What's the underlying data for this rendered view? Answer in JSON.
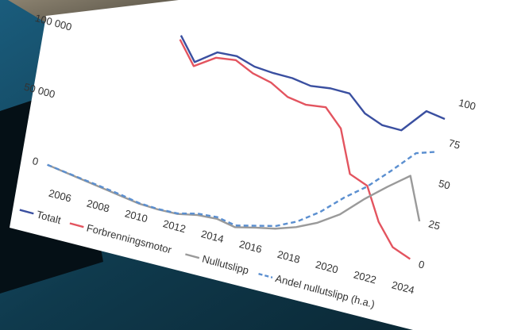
{
  "chart_data": {
    "type": "line",
    "title": "",
    "xlabel": "",
    "ylabel": "",
    "x": [
      2005,
      2006,
      2007,
      2008,
      2009,
      2010,
      2011,
      2012,
      2013,
      2014,
      2015,
      2016,
      2017,
      2018,
      2019,
      2020,
      2021,
      2022,
      2023,
      2024
    ],
    "x_ticks": [
      "2006",
      "2008",
      "2010",
      "2012",
      "2014",
      "2016",
      "2018",
      "2020",
      "2022",
      "2024"
    ],
    "y_left_ticks": [
      "0",
      "50 000",
      "100 000"
    ],
    "y_right_ticks": [
      "0",
      "25",
      "50",
      "75",
      "100"
    ],
    "ylim_left": [
      0,
      120000
    ],
    "ylim_right": [
      0,
      100
    ],
    "grid": false,
    "legend_position": "bottom",
    "series": [
      {
        "name": "Totalt",
        "axis": "left",
        "color": "#3a4fa0",
        "dash": "solid",
        "values": [
          null,
          null,
          null,
          null,
          null,
          115000,
          99000,
          110000,
          111000,
          107000,
          106000,
          106000,
          104000,
          106000,
          106000,
          95000,
          90000,
          90000,
          108000,
          106000
        ]
      },
      {
        "name": "Forbrenningsmotor",
        "axis": "left",
        "color": "#e3545f",
        "dash": "solid",
        "values": [
          null,
          null,
          null,
          null,
          null,
          112000,
          96000,
          106000,
          108000,
          102000,
          99000,
          92000,
          90000,
          92000,
          80000,
          50000,
          45000,
          22000,
          7000,
          2000
        ]
      },
      {
        "name": "Nullutslipp",
        "axis": "left",
        "color": "#9a9a9a",
        "dash": "solid",
        "values": [
          0,
          -2000,
          -4000,
          -6000,
          -8000,
          -10000,
          -10500,
          -10000,
          -7000,
          -6000,
          -8500,
          -5000,
          -2000,
          3000,
          10000,
          20000,
          35000,
          48000,
          60000,
          30000
        ]
      },
      {
        "name": "Andel nullutslipp (h.a.)",
        "axis": "right",
        "color": "#5b8fd0",
        "dash": "dashed",
        "values": [
          0,
          -1.5,
          -3,
          -4.5,
          -6,
          -8,
          -8.5,
          -8,
          -5,
          -4,
          -6,
          -3,
          0,
          6,
          15,
          27,
          37,
          50,
          64,
          68
        ]
      }
    ]
  }
}
